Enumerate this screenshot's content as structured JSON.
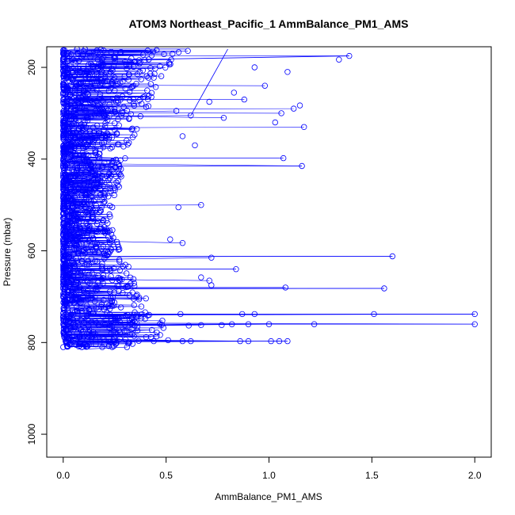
{
  "chart_data": {
    "type": "scatter",
    "title": "ATOM3 Northeast_Pacific_1 AmmBalance_PM1_AMS",
    "xlabel": "AmmBalance_PM1_AMS",
    "ylabel": "Pressure (mbar)",
    "xlim": [
      -0.08,
      2.08
    ],
    "ylim": [
      1050,
      155
    ],
    "y_reversed": true,
    "x_ticks": [
      0.0,
      0.5,
      1.0,
      1.5,
      2.0
    ],
    "x_tick_labels": [
      "0.0",
      "0.5",
      "1.0",
      "1.5",
      "2.0"
    ],
    "y_ticks": [
      200,
      400,
      600,
      800,
      1000
    ],
    "y_tick_labels": [
      "200",
      "400",
      "600",
      "800",
      "1000"
    ],
    "marker": "open-circle",
    "connected": true,
    "series_color": "#0000ff",
    "dense_envelope": [
      [
        160,
        0.0,
        0.62
      ],
      [
        200,
        0.0,
        0.5
      ],
      [
        250,
        0.0,
        0.45
      ],
      [
        300,
        0.0,
        0.4
      ],
      [
        350,
        0.0,
        0.35
      ],
      [
        400,
        0.0,
        0.3
      ],
      [
        450,
        0.0,
        0.28
      ],
      [
        500,
        0.0,
        0.24
      ],
      [
        550,
        0.0,
        0.24
      ],
      [
        600,
        0.0,
        0.28
      ],
      [
        650,
        0.0,
        0.34
      ],
      [
        700,
        0.0,
        0.4
      ],
      [
        740,
        0.0,
        0.48
      ],
      [
        780,
        0.0,
        0.52
      ],
      [
        810,
        0.02,
        0.3
      ]
    ],
    "outlier_points": [
      {
        "x": 1.39,
        "y": 175
      },
      {
        "x": 1.34,
        "y": 183
      },
      {
        "x": 1.17,
        "y": 330
      },
      {
        "x": 1.15,
        "y": 283
      },
      {
        "x": 1.12,
        "y": 290
      },
      {
        "x": 1.09,
        "y": 210
      },
      {
        "x": 1.06,
        "y": 300
      },
      {
        "x": 1.03,
        "y": 320
      },
      {
        "x": 0.98,
        "y": 240
      },
      {
        "x": 0.93,
        "y": 200
      },
      {
        "x": 0.88,
        "y": 270
      },
      {
        "x": 0.83,
        "y": 255
      },
      {
        "x": 0.78,
        "y": 310
      },
      {
        "x": 0.71,
        "y": 275
      },
      {
        "x": 0.62,
        "y": 305
      },
      {
        "x": 0.58,
        "y": 350
      },
      {
        "x": 0.55,
        "y": 295
      },
      {
        "x": 1.07,
        "y": 398
      },
      {
        "x": 1.16,
        "y": 415
      },
      {
        "x": 0.64,
        "y": 370
      },
      {
        "x": 0.67,
        "y": 500
      },
      {
        "x": 0.56,
        "y": 505
      },
      {
        "x": 0.58,
        "y": 583
      },
      {
        "x": 0.52,
        "y": 575
      },
      {
        "x": 1.6,
        "y": 612
      },
      {
        "x": 0.84,
        "y": 640
      },
      {
        "x": 0.72,
        "y": 615
      },
      {
        "x": 0.67,
        "y": 658
      },
      {
        "x": 0.71,
        "y": 665
      },
      {
        "x": 0.72,
        "y": 675
      },
      {
        "x": 1.56,
        "y": 682
      },
      {
        "x": 1.08,
        "y": 680
      },
      {
        "x": 2.0,
        "y": 738
      },
      {
        "x": 1.51,
        "y": 738
      },
      {
        "x": 0.93,
        "y": 738
      },
      {
        "x": 0.87,
        "y": 738
      },
      {
        "x": 2.0,
        "y": 760
      },
      {
        "x": 1.22,
        "y": 760
      },
      {
        "x": 1.0,
        "y": 760
      },
      {
        "x": 0.9,
        "y": 760
      },
      {
        "x": 0.82,
        "y": 760
      },
      {
        "x": 0.77,
        "y": 762
      },
      {
        "x": 0.67,
        "y": 762
      },
      {
        "x": 0.61,
        "y": 763
      },
      {
        "x": 0.57,
        "y": 738
      },
      {
        "x": 1.09,
        "y": 797
      },
      {
        "x": 1.05,
        "y": 797
      },
      {
        "x": 1.01,
        "y": 797
      },
      {
        "x": 0.9,
        "y": 797
      },
      {
        "x": 0.86,
        "y": 797
      },
      {
        "x": 0.62,
        "y": 797
      },
      {
        "x": 0.58,
        "y": 797
      },
      {
        "x": 0.51,
        "y": 795
      },
      {
        "x": 0.44,
        "y": 797
      },
      {
        "x": 0.31,
        "y": 810
      },
      {
        "x": 0.0,
        "y": 810
      },
      {
        "x": 0.19,
        "y": 810
      },
      {
        "x": 0.09,
        "y": 810
      }
    ],
    "long_traverse_lines": [
      [
        [
          0.05,
          185
        ],
        [
          1.39,
          175
        ]
      ],
      [
        [
          0.05,
          398
        ],
        [
          1.07,
          398
        ]
      ],
      [
        [
          0.05,
          415
        ],
        [
          1.16,
          415
        ]
      ],
      [
        [
          0.05,
          612
        ],
        [
          1.6,
          612
        ]
      ],
      [
        [
          0.05,
          640
        ],
        [
          0.84,
          640
        ]
      ],
      [
        [
          0.05,
          682
        ],
        [
          1.56,
          682
        ]
      ],
      [
        [
          0.05,
          680
        ],
        [
          1.08,
          680
        ]
      ],
      [
        [
          0.05,
          738
        ],
        [
          2.0,
          738
        ]
      ],
      [
        [
          0.05,
          760
        ],
        [
          2.0,
          760
        ]
      ],
      [
        [
          0.05,
          797
        ],
        [
          1.09,
          797
        ]
      ],
      [
        [
          0.62,
          305
        ],
        [
          0.8,
          160
        ]
      ],
      [
        [
          0.05,
          160
        ],
        [
          0.6,
          160
        ]
      ]
    ]
  }
}
